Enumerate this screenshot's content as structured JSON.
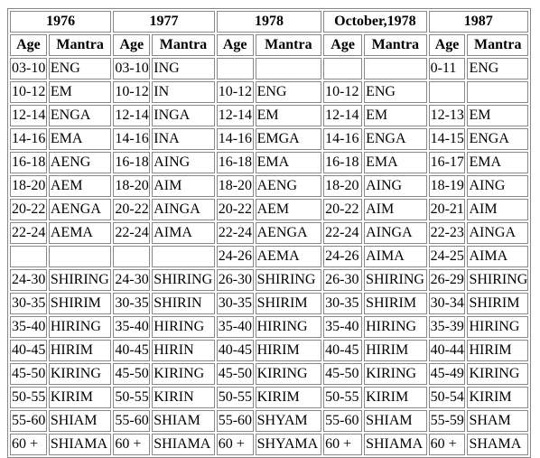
{
  "table": {
    "years": [
      "1976",
      "1977",
      "1978",
      "October,1978",
      "1987"
    ],
    "columns": [
      "Age",
      "Mantra",
      "Age",
      "Mantra",
      "Age",
      "Mantra",
      "Age",
      "Mantra",
      "Age",
      "Mantra"
    ],
    "rows": [
      [
        "03-10",
        "ENG",
        "03-10",
        "ING",
        null,
        null,
        null,
        null,
        "0-11",
        "ENG"
      ],
      [
        "10-12",
        "EM",
        "10-12",
        "IN",
        "10-12",
        "ENG",
        "10-12",
        "ENG",
        null,
        null
      ],
      [
        "12-14",
        "ENGA",
        "12-14",
        "INGA",
        "12-14",
        "EM",
        "12-14",
        "EM",
        "12-13",
        "EM"
      ],
      [
        "14-16",
        "EMA",
        "14-16",
        "INA",
        "14-16",
        "EMGA",
        "14-16",
        "ENGA",
        "14-15",
        "ENGA"
      ],
      [
        "16-18",
        "AENG",
        "16-18",
        "AING",
        "16-18",
        "EMA",
        "16-18",
        "EMA",
        "16-17",
        "EMA"
      ],
      [
        "18-20",
        "AEM",
        "18-20",
        "AIM",
        "18-20",
        "AENG",
        "18-20",
        "AING",
        "18-19",
        "AING"
      ],
      [
        "20-22",
        "AENGA",
        "20-22",
        "AINGA",
        "20-22",
        "AEM",
        "20-22",
        "AIM",
        "20-21",
        "AIM"
      ],
      [
        "22-24",
        "AEMA",
        "22-24",
        "AIMA",
        "22-24",
        "AENGA",
        "22-24",
        "AINGA",
        "22-23",
        "AINGA"
      ],
      [
        null,
        null,
        null,
        null,
        "24-26",
        "AEMA",
        "24-26",
        "AIMA",
        "24-25",
        "AIMA"
      ],
      [
        "24-30",
        "SHIRING",
        "24-30",
        "SHIRING",
        "26-30",
        "SHIRING",
        "26-30",
        "SHIRING",
        "26-29",
        "SHIRING"
      ],
      [
        "30-35",
        "SHIRIM",
        "30-35",
        "SHIRIN",
        "30-35",
        "SHIRIM",
        "30-35",
        "SHIRIM",
        "30-34",
        "SHIRIM"
      ],
      [
        "35-40",
        "HIRING",
        "35-40",
        "HIRING",
        "35-40",
        "HIRING",
        "35-40",
        "HIRING",
        "35-39",
        "HIRING"
      ],
      [
        "40-45",
        "HIRIM",
        "40-45",
        "HIRIN",
        "40-45",
        "HIRIM",
        "40-45",
        "HIRIM",
        "40-44",
        "HIRIM"
      ],
      [
        "45-50",
        "KIRING",
        "45-50",
        "KIRING",
        "45-50",
        "KIRING",
        "45-50",
        "KIRING",
        "45-49",
        "KIRING"
      ],
      [
        "50-55",
        "KIRIM",
        "50-55",
        "KIRIN",
        "50-55",
        "KIRIM",
        "50-55",
        "KIRIM",
        "50-54",
        "KIRIM"
      ],
      [
        "55-60",
        "SHIAM",
        "55-60",
        "SHIAM",
        "55-60",
        "SHYAM",
        "55-60",
        "SHIAM",
        "55-59",
        "SHAM"
      ],
      [
        "60 +",
        "SHIAMA",
        "60 +",
        "SHIAMA",
        "60 +",
        "SHYAMA",
        "60 +",
        "SHIAMA",
        "60 +",
        "SHAMA"
      ]
    ]
  }
}
